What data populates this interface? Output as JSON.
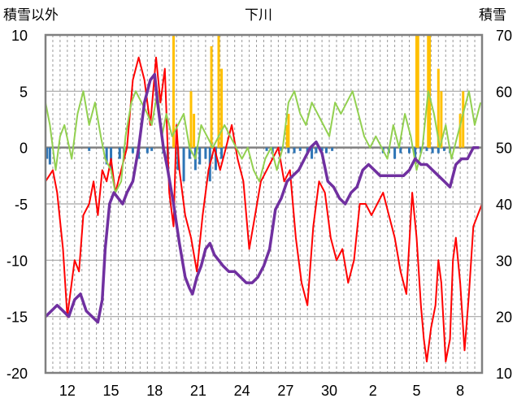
{
  "chart_data": {
    "type": "line",
    "title": "下川",
    "left_axis_label": "積雪以外",
    "right_axis_label": "積雪",
    "left_ylim": [
      -20,
      10
    ],
    "left_yticks": [
      "10",
      "5",
      "0",
      "-5",
      "-10",
      "-15",
      "-20"
    ],
    "right_ylim": [
      10,
      70
    ],
    "right_yticks": [
      "70",
      "60",
      "50",
      "40",
      "30",
      "20",
      "10"
    ],
    "xlim": [
      0,
      30
    ],
    "x_tick_labels": [
      "12",
      "15",
      "18",
      "21",
      "24",
      "27",
      "30",
      "2",
      "5",
      "8"
    ],
    "x_tick_positions": [
      1.5,
      4.5,
      7.5,
      10.5,
      13.5,
      16.5,
      19.5,
      22.5,
      25.5,
      28.5
    ],
    "grid": "dashed vertical every 0.5 day, solid horizontal at 5-unit steps",
    "series": [
      {
        "axis": "left",
        "color": "#ff0000",
        "x": [
          0,
          0.5,
          0.8,
          1.2,
          1.5,
          2.0,
          2.3,
          2.6,
          3.0,
          3.3,
          3.6,
          3.9,
          4.2,
          4.5,
          4.8,
          5.2,
          5.6,
          6.0,
          6.4,
          6.8,
          7.2,
          7.6,
          7.9,
          8.2,
          8.5,
          8.8,
          9.0,
          9.2,
          9.6,
          10.0,
          10.4,
          10.8,
          11.2,
          11.6,
          12.0,
          12.4,
          12.8,
          13.2,
          13.6,
          14.0,
          14.4,
          14.8,
          15.2,
          15.6,
          16.0,
          16.4,
          16.8,
          17.2,
          17.6,
          18.0,
          18.4,
          18.8,
          19.2,
          19.6,
          20.0,
          20.4,
          20.8,
          21.2,
          21.6,
          22.0,
          22.4,
          22.8,
          23.2,
          23.6,
          24.0,
          24.4,
          24.8,
          25.2,
          25.5,
          25.8,
          26.0,
          26.2,
          26.5,
          26.8,
          27.0,
          27.2,
          27.5,
          27.8,
          28.0,
          28.2,
          28.5,
          28.8,
          29.1,
          29.4,
          29.7,
          30.0
        ],
        "y": [
          -3,
          -2,
          -4,
          -9,
          -15,
          -10,
          -11,
          -6,
          -5,
          -3,
          -6,
          -2,
          -3,
          -1,
          -4,
          -2,
          0,
          6,
          8,
          6,
          2,
          8,
          4,
          7,
          -4,
          -7,
          2,
          -2,
          -6,
          -8,
          -11,
          -6,
          -2,
          0,
          -2,
          0,
          2,
          -1,
          -3,
          -9,
          -6,
          -3,
          -2,
          -1,
          0,
          -3,
          -2,
          -8,
          -12,
          -14,
          -7,
          -3,
          -4,
          -8,
          -10,
          -9,
          -12,
          -10,
          -5,
          -5,
          -6,
          -5,
          -4,
          -6,
          -8,
          -11,
          -13,
          -4,
          -8,
          -14,
          -17,
          -19,
          -16,
          -14,
          -10,
          -12,
          -19,
          -17,
          -10,
          -8,
          -12,
          -18,
          -13,
          -7,
          -6,
          -5
        ]
      },
      {
        "axis": "left",
        "color": "#92d050",
        "x": [
          0,
          0.3,
          0.7,
          1.0,
          1.3,
          1.8,
          2.2,
          2.6,
          3.0,
          3.4,
          3.8,
          4.1,
          4.5,
          4.8,
          5.2,
          5.5,
          5.9,
          6.2,
          6.6,
          7.0,
          7.3,
          7.7,
          8.0,
          8.3,
          8.7,
          9.1,
          9.5,
          9.9,
          10.3,
          10.7,
          11.1,
          11.5,
          11.9,
          12.3,
          12.7,
          13.1,
          13.5,
          13.9,
          14.3,
          14.7,
          15.1,
          15.5,
          15.9,
          16.3,
          16.7,
          17.1,
          17.5,
          17.9,
          18.3,
          18.7,
          19.1,
          19.5,
          19.9,
          20.3,
          20.7,
          21.1,
          21.5,
          21.9,
          22.3,
          22.7,
          23.1,
          23.5,
          23.9,
          24.3,
          24.7,
          25.1,
          25.5,
          25.9,
          26.3,
          26.7,
          27.1,
          27.5,
          27.9,
          28.3,
          28.7,
          29.1,
          29.5,
          29.9
        ],
        "y": [
          4,
          2,
          -2,
          1,
          2,
          -1,
          3,
          5,
          2,
          4,
          1,
          -1,
          -2,
          -4,
          -3,
          1,
          4,
          5,
          4,
          3,
          2,
          5,
          1,
          3,
          1,
          2,
          3,
          0,
          -1,
          2,
          1,
          0,
          1,
          2,
          1,
          0,
          -1,
          0,
          -2,
          -3,
          -1,
          0,
          -2,
          0,
          4,
          5,
          3,
          2,
          4,
          3,
          2,
          1,
          4,
          3,
          4,
          5,
          3,
          1,
          0,
          1,
          0,
          -1,
          2,
          0,
          3,
          1,
          -2,
          0,
          5,
          3,
          0,
          2,
          -1,
          1,
          3,
          5,
          2,
          4
        ]
      },
      {
        "axis": "right",
        "color": "#7030a0",
        "x": [
          0,
          0.4,
          0.8,
          1.2,
          1.6,
          2.0,
          2.4,
          2.8,
          3.2,
          3.6,
          3.9,
          4.1,
          4.4,
          4.7,
          5.0,
          5.3,
          5.6,
          6.0,
          6.4,
          6.8,
          7.2,
          7.5,
          7.7,
          7.9,
          8.1,
          8.4,
          8.8,
          9.2,
          9.6,
          9.9,
          10.1,
          10.4,
          10.7,
          11.0,
          11.3,
          11.6,
          11.9,
          12.2,
          12.6,
          13.0,
          13.4,
          13.8,
          14.2,
          14.6,
          15.0,
          15.4,
          15.8,
          16.2,
          16.6,
          17.0,
          17.4,
          17.8,
          18.2,
          18.6,
          19.0,
          19.4,
          19.8,
          20.2,
          20.6,
          21.0,
          21.4,
          21.8,
          22.2,
          22.6,
          23.0,
          23.4,
          23.8,
          24.2,
          24.6,
          25.0,
          25.4,
          25.8,
          26.2,
          26.6,
          27.0,
          27.4,
          27.8,
          28.2,
          28.6,
          29.0,
          29.4,
          29.8
        ],
        "y": [
          20,
          21,
          22,
          21,
          20,
          23,
          24,
          21,
          20,
          19,
          23,
          32,
          40,
          42,
          41,
          40,
          42,
          44,
          50,
          58,
          62,
          63,
          58,
          54,
          50,
          46,
          40,
          33,
          27,
          25,
          24,
          27,
          29,
          32,
          33,
          31,
          30,
          29,
          28,
          28,
          27,
          26,
          26,
          27,
          29,
          32,
          39,
          41,
          44,
          45,
          46,
          48,
          50,
          51,
          49,
          44,
          43,
          41,
          40,
          42,
          43,
          46,
          47,
          46,
          45,
          45,
          45,
          45,
          45,
          46,
          48,
          47,
          47,
          46,
          45,
          44,
          43,
          47,
          48,
          48,
          50,
          50
        ]
      },
      {
        "axis": "left",
        "color": "#ffc000",
        "kind": "bars",
        "x": [
          8.8,
          10.0,
          10.2,
          11.4,
          11.9,
          12.1,
          16.6,
          16.7,
          25.5,
          25.6,
          26.3,
          26.4,
          27.0,
          27.2,
          28.5,
          28.7
        ],
        "y": [
          10,
          5,
          3,
          9,
          10,
          7,
          2,
          3,
          10,
          10,
          10,
          10,
          7,
          5,
          3,
          5
        ]
      },
      {
        "axis": "left",
        "color": "#2e75b6",
        "kind": "bars",
        "x": [
          0.1,
          0.3,
          3.0,
          4.2,
          4.5,
          5.1,
          5.4,
          6.0,
          6.4,
          7.0,
          7.3,
          8.1,
          8.4,
          9.1,
          9.5,
          9.9,
          10.3,
          10.6,
          11.0,
          11.3,
          11.7,
          12.1,
          15.2,
          15.6,
          16.2,
          16.7,
          17.1,
          17.5,
          18.0,
          18.3,
          18.6,
          19.0,
          19.3,
          19.7,
          23.2,
          23.6,
          24.0,
          24.4,
          25.0,
          25.4,
          25.8,
          26.2,
          26.6,
          27.0,
          27.4,
          27.8
        ],
        "y": [
          -1,
          -1.5,
          -0.3,
          -1.5,
          -2,
          -1,
          -0.5,
          -0.5,
          -1,
          -0.5,
          -0.3,
          -0.5,
          -1,
          -2,
          -3,
          -1,
          -2,
          -1.5,
          -1,
          -3,
          -2,
          -1,
          -0.3,
          -0.5,
          -0.3,
          -0.5,
          -0.5,
          -0.3,
          -0.5,
          -1,
          -0.5,
          -0.3,
          -0.5,
          -0.3,
          -0.5,
          -0.5,
          -1,
          -0.5,
          -0.5,
          -1,
          -0.5,
          -0.3,
          -0.5,
          -0.5,
          -0.3,
          -0.5
        ]
      }
    ]
  }
}
